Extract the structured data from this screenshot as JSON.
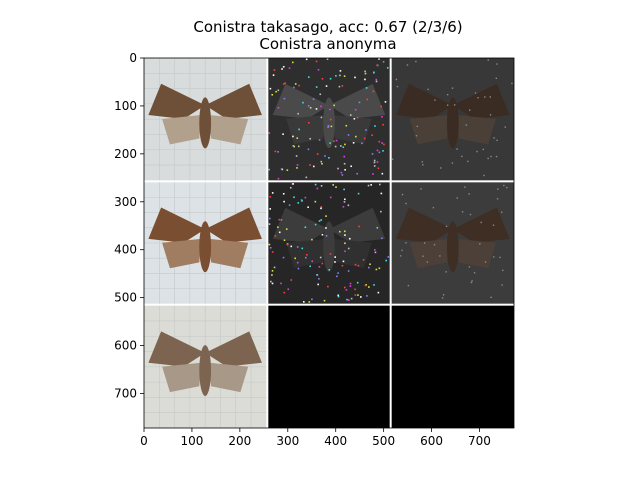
{
  "chart_data": {
    "type": "image-grid",
    "title_lines": [
      "Conistra takasago, acc: 0.67 (2/3/6)",
      "Conistra anonyma"
    ],
    "grid": {
      "rows": 3,
      "cols": 3
    },
    "xlim": [
      0,
      772
    ],
    "ylim": [
      772,
      0
    ],
    "xticks": [
      0,
      100,
      200,
      300,
      400,
      500,
      600,
      700
    ],
    "yticks": [
      0,
      100,
      200,
      300,
      400,
      500,
      600,
      700
    ],
    "panels": [
      {
        "row": 0,
        "col": 0,
        "content": "moth specimen photo",
        "bg": "#d8dcdc",
        "moth": "#6e5038",
        "moth_lite": "#b0a08c"
      },
      {
        "row": 0,
        "col": 1,
        "content": "noisy saliency map",
        "bg": "#2e2e2e",
        "moth": "#4a4a4a",
        "moth_lite": "#3a3a3a"
      },
      {
        "row": 0,
        "col": 2,
        "content": "dark masked specimen",
        "bg": "#383838",
        "moth": "#3a2c22",
        "moth_lite": "#4a4038"
      },
      {
        "row": 1,
        "col": 0,
        "content": "moth specimen photo",
        "bg": "#dce2e6",
        "moth": "#7a4e30",
        "moth_lite": "#a07c60"
      },
      {
        "row": 1,
        "col": 1,
        "content": "noisy saliency map",
        "bg": "#262626",
        "moth": "#3c3c3c",
        "moth_lite": "#303030"
      },
      {
        "row": 1,
        "col": 2,
        "content": "dark masked specimen",
        "bg": "#3c3c3c",
        "moth": "#3e2e24",
        "moth_lite": "#4c4038"
      },
      {
        "row": 2,
        "col": 0,
        "content": "moth specimen photo",
        "bg": "#dcdcd6",
        "moth": "#7c6450",
        "moth_lite": "#a89888"
      },
      {
        "row": 2,
        "col": 1,
        "content": "empty",
        "bg": "#000000"
      },
      {
        "row": 2,
        "col": 2,
        "content": "empty",
        "bg": "#000000"
      }
    ]
  }
}
